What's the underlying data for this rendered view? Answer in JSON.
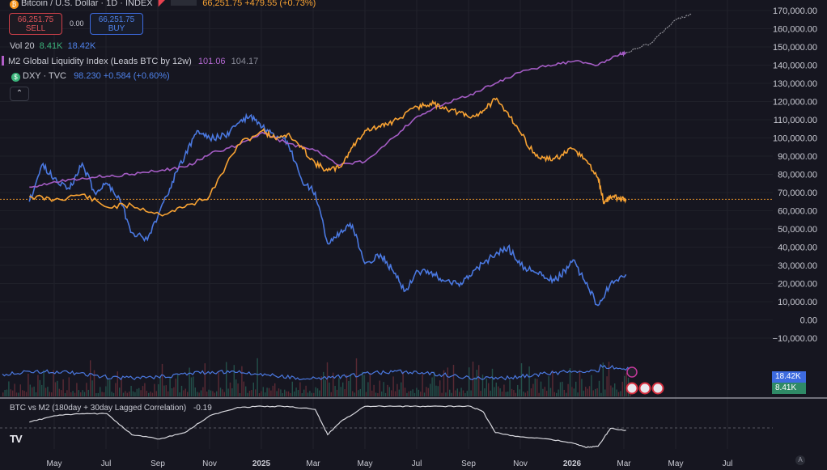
{
  "header": {
    "symbol": "Bitcoin / U.S. Dollar · 1D · INDEX",
    "price_change": "66,251.75  +479.55 (+0.73%)",
    "sell_price": "66,251.75",
    "sell_label": "SELL",
    "spread": "0.00",
    "buy_price": "66,251.75",
    "buy_label": "BUY"
  },
  "legend": {
    "vol_label": "Vol 20",
    "vol_value1": "8.41K",
    "vol_value2": "18.42K",
    "m2_label": "M2 Global Liquidity Index (Leads BTC by 12w)",
    "m2_value1": "101.06",
    "m2_value2": "104.17",
    "dxy_label": "DXY · TVC",
    "dxy_value": "98.230  +0.584 (+0.60%)"
  },
  "indicator": {
    "label": "BTC vs M2 (180day + 30day Lagged Correlation)",
    "value": "-0.19"
  },
  "badges": {
    "vol_ma": "18.42K",
    "vol": "8.41K"
  },
  "colors": {
    "background": "#161620",
    "btc": "#f7a233",
    "m2": "#a45cc4",
    "dxy": "#4a78e0",
    "correlation": "#d8d8de",
    "price_line": "#e0902a"
  },
  "chart_data": {
    "type": "line",
    "x_labels": [
      "May",
      "Jul",
      "Sep",
      "Nov",
      "2025",
      "Mar",
      "May",
      "Jul",
      "Sep",
      "Nov",
      "2026",
      "Mar",
      "May",
      "Jul"
    ],
    "y_ticks": [
      "170,000.00",
      "160,000.00",
      "150,000.00",
      "140,000.00",
      "130,000.00",
      "120,000.00",
      "110,000.00",
      "100,000.00",
      "90,000.00",
      "80,000.00",
      "70,000.00",
      "60,000.00",
      "50,000.00",
      "40,000.00",
      "30,000.00",
      "20,000.00",
      "10,000.00",
      "0.00",
      "−10,000.00"
    ],
    "ylim": [
      -10000,
      170000
    ],
    "current_price": 66251.75,
    "series": [
      {
        "name": "Bitcoin / U.S. Dollar",
        "x": [
          2024.25,
          2024.33,
          2024.42,
          2024.5,
          2024.58,
          2024.67,
          2024.75,
          2024.83,
          2024.92,
          2025.0,
          2025.04,
          2025.08,
          2025.13,
          2025.17,
          2025.21,
          2025.25,
          2025.29,
          2025.33,
          2025.38,
          2025.42,
          2025.5,
          2025.54,
          2025.58,
          2025.63,
          2025.67,
          2025.71,
          2025.75,
          2025.79,
          2025.83,
          2025.88,
          2025.92,
          2025.96,
          2026.0,
          2026.04,
          2026.08,
          2026.1,
          2026.12,
          2026.15,
          2026.17
        ],
        "y": [
          68000,
          66000,
          69000,
          62000,
          63000,
          58000,
          62000,
          68000,
          96000,
          104000,
          100000,
          102000,
          94000,
          86000,
          82000,
          84000,
          95000,
          104000,
          106000,
          109000,
          117000,
          119000,
          117000,
          114000,
          111000,
          115000,
          121000,
          114000,
          103000,
          90000,
          88000,
          90000,
          94000,
          88000,
          78000,
          64000,
          68000,
          66500,
          66250
        ]
      },
      {
        "name": "M2 Global Liquidity Index",
        "x": [
          2024.25,
          2024.33,
          2024.42,
          2024.5,
          2024.58,
          2024.67,
          2024.75,
          2024.83,
          2024.92,
          2025.0,
          2025.08,
          2025.17,
          2025.25,
          2025.33,
          2025.42,
          2025.5,
          2025.58,
          2025.67,
          2025.75,
          2025.83,
          2025.92,
          2026.0,
          2026.08,
          2026.15,
          2026.17,
          2026.25,
          2026.33,
          2026.38
        ],
        "y": [
          73000,
          76000,
          78000,
          79000,
          80000,
          82000,
          84000,
          91000,
          96000,
          103000,
          97000,
          93000,
          85000,
          87000,
          100000,
          112000,
          118000,
          124000,
          130000,
          136000,
          140000,
          142000,
          140000,
          146000,
          147000,
          152000,
          165000,
          168000
        ]
      },
      {
        "name": "DXY",
        "x": [
          2024.25,
          2024.29,
          2024.33,
          2024.38,
          2024.42,
          2024.46,
          2024.5,
          2024.54,
          2024.58,
          2024.63,
          2024.67,
          2024.71,
          2024.75,
          2024.79,
          2024.83,
          2024.88,
          2024.92,
          2024.96,
          2025.0,
          2025.04,
          2025.08,
          2025.13,
          2025.17,
          2025.21,
          2025.25,
          2025.29,
          2025.33,
          2025.38,
          2025.42,
          2025.46,
          2025.5,
          2025.54,
          2025.58,
          2025.63,
          2025.67,
          2025.71,
          2025.75,
          2025.79,
          2025.83,
          2025.88,
          2025.92,
          2025.96,
          2026.0,
          2026.04,
          2026.08,
          2026.12,
          2026.17
        ],
        "y": [
          65000,
          85000,
          78000,
          72000,
          86000,
          70000,
          75000,
          67000,
          48000,
          44000,
          60000,
          76000,
          90000,
          104000,
          100000,
          101000,
          108000,
          112000,
          106000,
          100000,
          98000,
          75000,
          70000,
          42000,
          48000,
          52000,
          31000,
          36000,
          27000,
          16000,
          27000,
          26000,
          22000,
          20000,
          24000,
          31000,
          36000,
          40000,
          30000,
          26000,
          22000,
          24000,
          33000,
          20000,
          8000,
          20000,
          25000
        ]
      }
    ]
  },
  "correlation_data": {
    "type": "line",
    "name": "BTC vs M2 (180day + 30day Lagged Correlation)",
    "ylim": [
      -1,
      1
    ],
    "x": [
      2024.25,
      2024.33,
      2024.42,
      2024.5,
      2024.58,
      2024.67,
      2024.75,
      2024.83,
      2024.92,
      2025.0,
      2025.08,
      2025.17,
      2025.21,
      2025.25,
      2025.33,
      2025.42,
      2025.5,
      2025.58,
      2025.67,
      2025.71,
      2025.75,
      2025.83,
      2025.92,
      2026.0,
      2026.04,
      2026.08,
      2026.12,
      2026.17
    ],
    "y": [
      0.2,
      0.5,
      0.6,
      0.6,
      -0.4,
      -0.6,
      -0.3,
      0.5,
      0.9,
      0.95,
      0.95,
      0.8,
      -0.4,
      0.2,
      0.95,
      0.95,
      0.95,
      0.95,
      0.95,
      0.7,
      -0.3,
      -0.5,
      -0.6,
      -0.8,
      -1.0,
      -0.95,
      -0.1,
      -0.19
    ]
  }
}
